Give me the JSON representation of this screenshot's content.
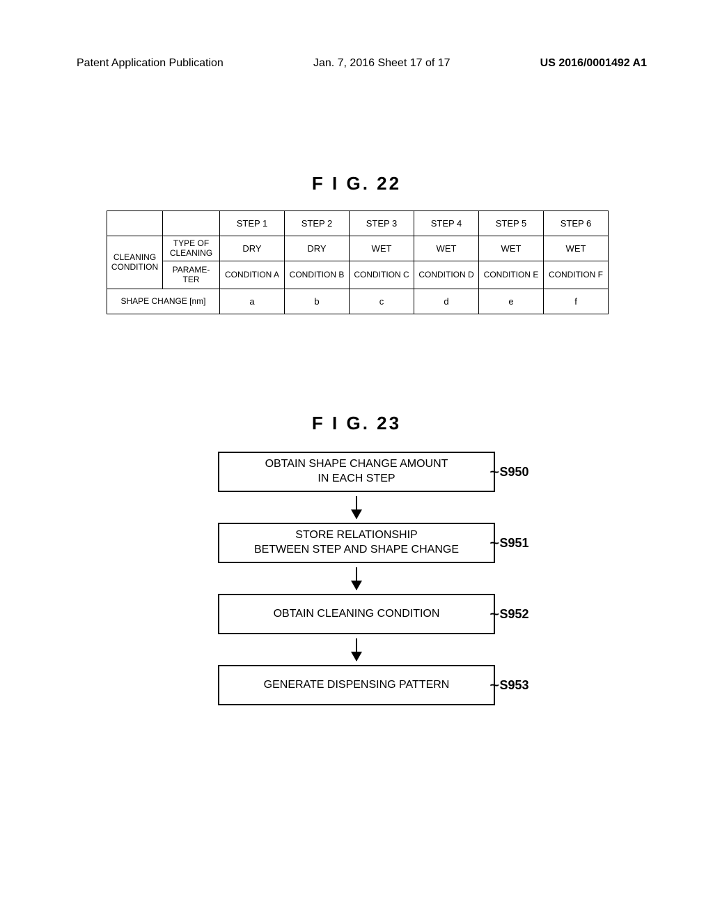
{
  "header": {
    "left": "Patent Application Publication",
    "center": "Jan. 7, 2016  Sheet 17 of 17",
    "right": "US 2016/0001492 A1"
  },
  "fig22": {
    "title": "F I G.  22",
    "columns": [
      "STEP 1",
      "STEP 2",
      "STEP 3",
      "STEP 4",
      "STEP 5",
      "STEP 6"
    ],
    "row_group_label": "CLEANING CONDITION",
    "type_label": "TYPE OF CLEANING",
    "type_values": [
      "DRY",
      "DRY",
      "WET",
      "WET",
      "WET",
      "WET"
    ],
    "param_label": "PARAME-TER",
    "param_values": [
      "CONDITION A",
      "CONDITION B",
      "CONDITION C",
      "CONDITION D",
      "CONDITION E",
      "CONDITION F"
    ],
    "shape_label": "SHAPE CHANGE [nm]",
    "shape_values": [
      "a",
      "b",
      "c",
      "d",
      "e",
      "f"
    ]
  },
  "fig23": {
    "title": "F I G.  23",
    "steps": [
      {
        "text": "OBTAIN SHAPE CHANGE AMOUNT\nIN EACH STEP",
        "label": "S950"
      },
      {
        "text": "STORE RELATIONSHIP\nBETWEEN STEP AND SHAPE CHANGE",
        "label": "S951"
      },
      {
        "text": "OBTAIN CLEANING CONDITION",
        "label": "S952"
      },
      {
        "text": "GENERATE DISPENSING PATTERN",
        "label": "S953"
      }
    ]
  }
}
